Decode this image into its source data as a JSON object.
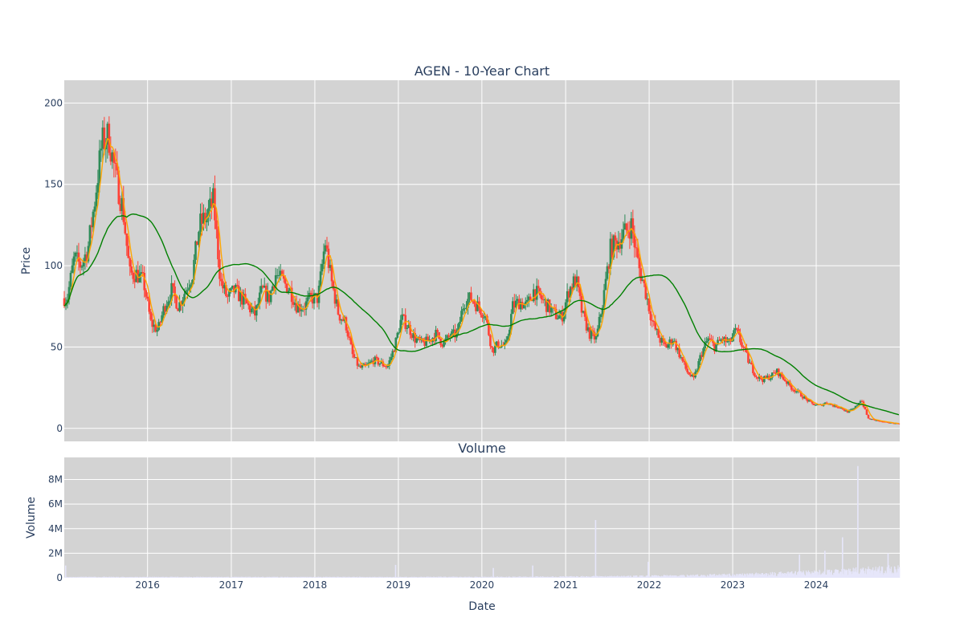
{
  "chart_data": [
    {
      "type": "candlestick",
      "title": "AGEN - 10-Year Chart",
      "ylabel": "Price",
      "ylim": [
        -8,
        214
      ],
      "yticks": [
        0,
        50,
        100,
        150,
        200
      ],
      "xlim": [
        "2015-01-02",
        "2024-12-31"
      ],
      "xticks": [
        "2016",
        "2017",
        "2018",
        "2019",
        "2020",
        "2021",
        "2022",
        "2023",
        "2024"
      ],
      "grid": true,
      "colors": {
        "background": "#d3d3d3",
        "grid": "#ffffff",
        "up": "#2e8b57",
        "down": "#ff4136",
        "ma_short": "#ffa500",
        "ma_long": "#008000"
      },
      "series": [
        {
          "role": "price",
          "x": [
            "2015-01",
            "2015-02",
            "2015-03",
            "2015-04",
            "2015-05",
            "2015-06",
            "2015-07",
            "2015-08",
            "2015-09",
            "2015-10",
            "2015-11",
            "2015-12",
            "2016-01",
            "2016-02",
            "2016-03",
            "2016-04",
            "2016-05",
            "2016-06",
            "2016-07",
            "2016-08",
            "2016-09",
            "2016-10",
            "2016-11",
            "2016-12",
            "2017-01",
            "2017-02",
            "2017-03",
            "2017-04",
            "2017-05",
            "2017-06",
            "2017-07",
            "2017-08",
            "2017-09",
            "2017-10",
            "2017-11",
            "2017-12",
            "2018-01",
            "2018-02",
            "2018-03",
            "2018-04",
            "2018-05",
            "2018-06",
            "2018-07",
            "2018-08",
            "2018-09",
            "2018-10",
            "2018-11",
            "2018-12",
            "2019-01",
            "2019-02",
            "2019-03",
            "2019-04",
            "2019-05",
            "2019-06",
            "2019-07",
            "2019-08",
            "2019-09",
            "2019-10",
            "2019-11",
            "2019-12",
            "2020-01",
            "2020-02",
            "2020-03",
            "2020-04",
            "2020-05",
            "2020-06",
            "2020-07",
            "2020-08",
            "2020-09",
            "2020-10",
            "2020-11",
            "2020-12",
            "2021-01",
            "2021-02",
            "2021-03",
            "2021-04",
            "2021-05",
            "2021-06",
            "2021-07",
            "2021-08",
            "2021-09",
            "2021-10",
            "2021-11",
            "2021-12",
            "2022-01",
            "2022-02",
            "2022-03",
            "2022-04",
            "2022-05",
            "2022-06",
            "2022-07",
            "2022-08",
            "2022-09",
            "2022-10",
            "2022-11",
            "2022-12",
            "2023-01",
            "2023-02",
            "2023-03",
            "2023-04",
            "2023-05",
            "2023-06",
            "2023-07",
            "2023-08",
            "2023-09",
            "2023-10",
            "2023-11",
            "2023-12",
            "2024-01",
            "2024-02",
            "2024-03",
            "2024-04",
            "2024-05",
            "2024-06",
            "2024-07",
            "2024-08",
            "2024-09",
            "2024-10",
            "2024-11",
            "2024-12"
          ],
          "close": [
            80,
            105,
            100,
            110,
            140,
            175,
            180,
            155,
            135,
            95,
            95,
            90,
            65,
            60,
            75,
            85,
            75,
            85,
            95,
            125,
            130,
            140,
            90,
            80,
            85,
            80,
            75,
            70,
            85,
            80,
            95,
            90,
            85,
            75,
            75,
            80,
            80,
            115,
            90,
            70,
            65,
            45,
            37,
            38,
            42,
            40,
            38,
            50,
            68,
            62,
            55,
            52,
            54,
            58,
            52,
            57,
            58,
            78,
            80,
            75,
            70,
            48,
            52,
            50,
            75,
            78,
            75,
            85,
            80,
            75,
            70,
            68,
            85,
            92,
            70,
            58,
            55,
            80,
            110,
            115,
            120,
            125,
            100,
            85,
            65,
            55,
            50,
            55,
            45,
            35,
            30,
            45,
            55,
            50,
            55,
            52,
            60,
            50,
            40,
            32,
            30,
            32,
            35,
            30,
            25,
            22,
            18,
            15,
            14,
            16,
            14,
            13,
            10,
            12,
            18,
            6,
            5,
            4,
            3.5,
            3
          ]
        }
      ]
    },
    {
      "type": "bar",
      "title": "Volume",
      "xlabel": "Date",
      "ylabel": "Volume",
      "ylim": [
        0,
        9800000
      ],
      "yticks": [
        0,
        2000000,
        4000000,
        6000000,
        8000000
      ],
      "ytick_labels": [
        "0",
        "2M",
        "4M",
        "6M",
        "8M"
      ],
      "color": "#e6e6fa",
      "spikes": [
        {
          "date": "2015-01-08",
          "value": 1000000
        },
        {
          "date": "2018-12-20",
          "value": 1050000
        },
        {
          "date": "2020-02-20",
          "value": 800000
        },
        {
          "date": "2020-08-10",
          "value": 1000000
        },
        {
          "date": "2021-05-12",
          "value": 4700000
        },
        {
          "date": "2021-12-28",
          "value": 1300000
        },
        {
          "date": "2023-10-20",
          "value": 1900000
        },
        {
          "date": "2024-02-08",
          "value": 2200000
        },
        {
          "date": "2024-04-25",
          "value": 3300000
        },
        {
          "date": "2024-07-01",
          "value": 9100000
        },
        {
          "date": "2024-11-10",
          "value": 2000000
        }
      ]
    }
  ]
}
